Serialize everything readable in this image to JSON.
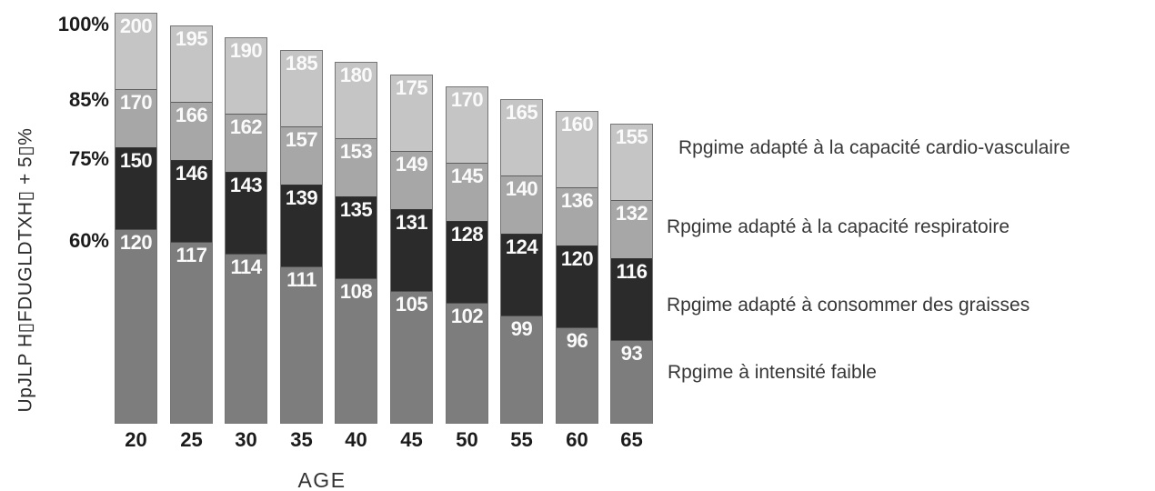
{
  "chart_data": {
    "type": "bar",
    "stacked": true,
    "title": "",
    "xlabel": "AGE",
    "ylabel": "UpJLP H▯FDUGLDTXH▯ + 5▯%",
    "categories": [
      "20",
      "25",
      "30",
      "35",
      "40",
      "45",
      "50",
      "55",
      "60",
      "65"
    ],
    "series": [
      {
        "name": "Rpgime à intensité faible",
        "color": "#7d7d7d",
        "values": [
          120,
          117,
          114,
          111,
          108,
          105,
          102,
          99,
          96,
          93
        ]
      },
      {
        "name": "Rpgime adapté à consommer des graisses",
        "color": "#2b2b2b",
        "values": [
          150,
          146,
          143,
          139,
          135,
          131,
          128,
          124,
          120,
          116
        ]
      },
      {
        "name": "Rpgime adapté à la capacité respiratoire",
        "color": "#a7a7a7",
        "values": [
          170,
          166,
          162,
          157,
          153,
          149,
          145,
          140,
          136,
          132
        ]
      },
      {
        "name": "Rpgime adapté à la capacité cardio-vasculaire",
        "color": "#c5c5c5",
        "values": [
          200,
          195,
          190,
          185,
          180,
          175,
          170,
          165,
          160,
          155
        ]
      }
    ],
    "y_axis_tick_labels": [
      "100%",
      "85%",
      "75%",
      "60%"
    ],
    "value_label_color": "#fafafa",
    "legend_position": "right",
    "grid": false,
    "axis_ranges": {
      "x": [
        20,
        65
      ],
      "y_percent": [
        60,
        100
      ]
    }
  }
}
